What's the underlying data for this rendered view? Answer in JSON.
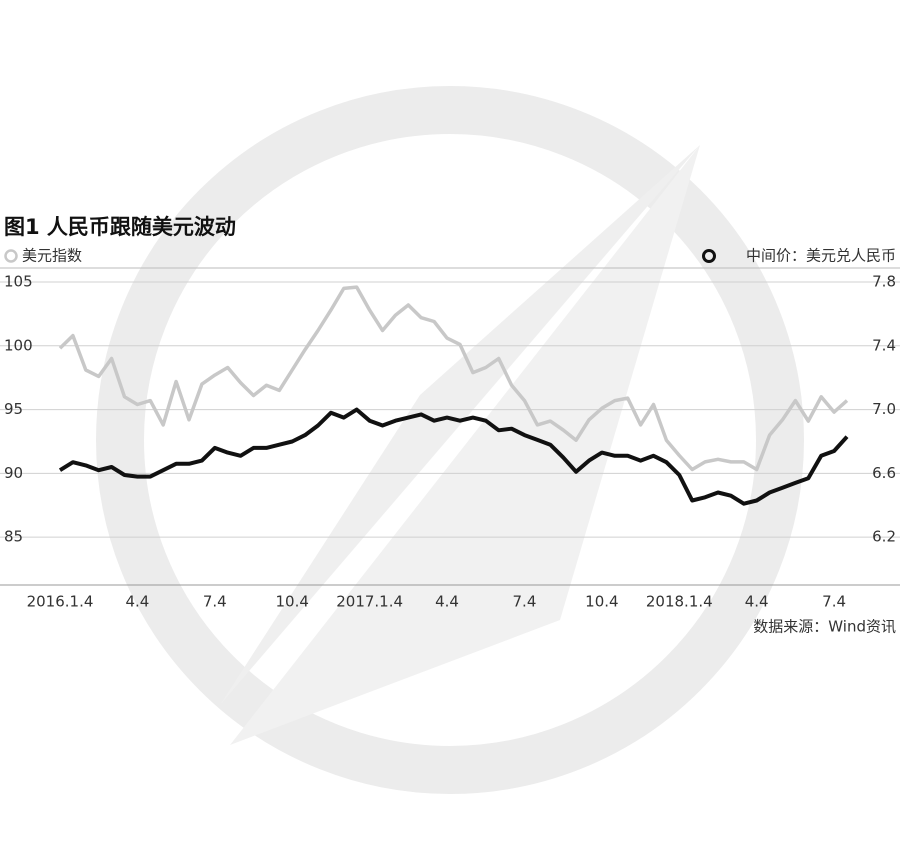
{
  "chart_data": {
    "type": "line",
    "title": "图1 人民币跟随美元波动",
    "source": "数据来源：Wind资讯",
    "categories": [
      "2016.1.4",
      null,
      null,
      null,
      null,
      null,
      "4.4",
      null,
      null,
      null,
      null,
      null,
      "7.4",
      null,
      null,
      null,
      null,
      null,
      "10.4",
      null,
      null,
      null,
      null,
      null,
      "2017.1.4",
      null,
      null,
      null,
      null,
      null,
      "4.4",
      null,
      null,
      null,
      null,
      null,
      "7.4",
      null,
      null,
      null,
      null,
      null,
      "10.4",
      null,
      null,
      null,
      null,
      null,
      "2018.1.4",
      null,
      null,
      null,
      null,
      null,
      "4.4",
      null,
      null,
      null,
      null,
      null,
      "7.4",
      null
    ],
    "series": [
      {
        "name": "美元指数",
        "color": "#c8c8c8",
        "axis": "y",
        "values": [
          99.8,
          100.8,
          98.1,
          97.6,
          99.0,
          96.0,
          95.4,
          95.7,
          93.8,
          97.2,
          94.2,
          97.0,
          97.7,
          98.3,
          97.1,
          96.1,
          96.9,
          96.5,
          98.1,
          99.7,
          101.2,
          102.8,
          104.5,
          104.6,
          102.8,
          101.2,
          102.4,
          103.2,
          102.2,
          101.9,
          100.6,
          100.1,
          97.9,
          98.3,
          99.0,
          96.9,
          95.7,
          93.8,
          94.1,
          93.4,
          92.6,
          94.2,
          95.1,
          95.7,
          95.9,
          93.8,
          95.4,
          92.6,
          91.4,
          90.3,
          90.9,
          91.1,
          90.9,
          90.9,
          90.3,
          93.0,
          94.2,
          95.7,
          94.1,
          96.0,
          94.8,
          95.7
        ]
      },
      {
        "name": "中间价：美元兑人民币",
        "color": "#111111",
        "axis": "y2",
        "values": [
          6.62,
          6.67,
          6.65,
          6.62,
          6.64,
          6.59,
          6.58,
          6.58,
          6.62,
          6.66,
          6.66,
          6.68,
          6.76,
          6.73,
          6.71,
          6.76,
          6.76,
          6.78,
          6.8,
          6.84,
          6.9,
          6.98,
          6.95,
          7.0,
          6.93,
          6.9,
          6.93,
          6.95,
          6.97,
          6.93,
          6.95,
          6.93,
          6.95,
          6.93,
          6.87,
          6.88,
          6.84,
          6.81,
          6.78,
          6.7,
          6.61,
          6.68,
          6.73,
          6.71,
          6.71,
          6.68,
          6.71,
          6.67,
          6.59,
          6.43,
          6.45,
          6.48,
          6.46,
          6.41,
          6.43,
          6.48,
          6.51,
          6.54,
          6.57,
          6.71,
          6.74,
          6.83
        ]
      }
    ],
    "ylim": [
      81.25,
      105
    ],
    "yticks": [
      85,
      90,
      95,
      100,
      105
    ],
    "y2lim": [
      5.9,
      7.8
    ],
    "y2ticks": [
      6.2,
      6.6,
      {
        "value": 7,
        "label": "7.0"
      },
      7.4,
      7.8
    ],
    "grid": true
  }
}
